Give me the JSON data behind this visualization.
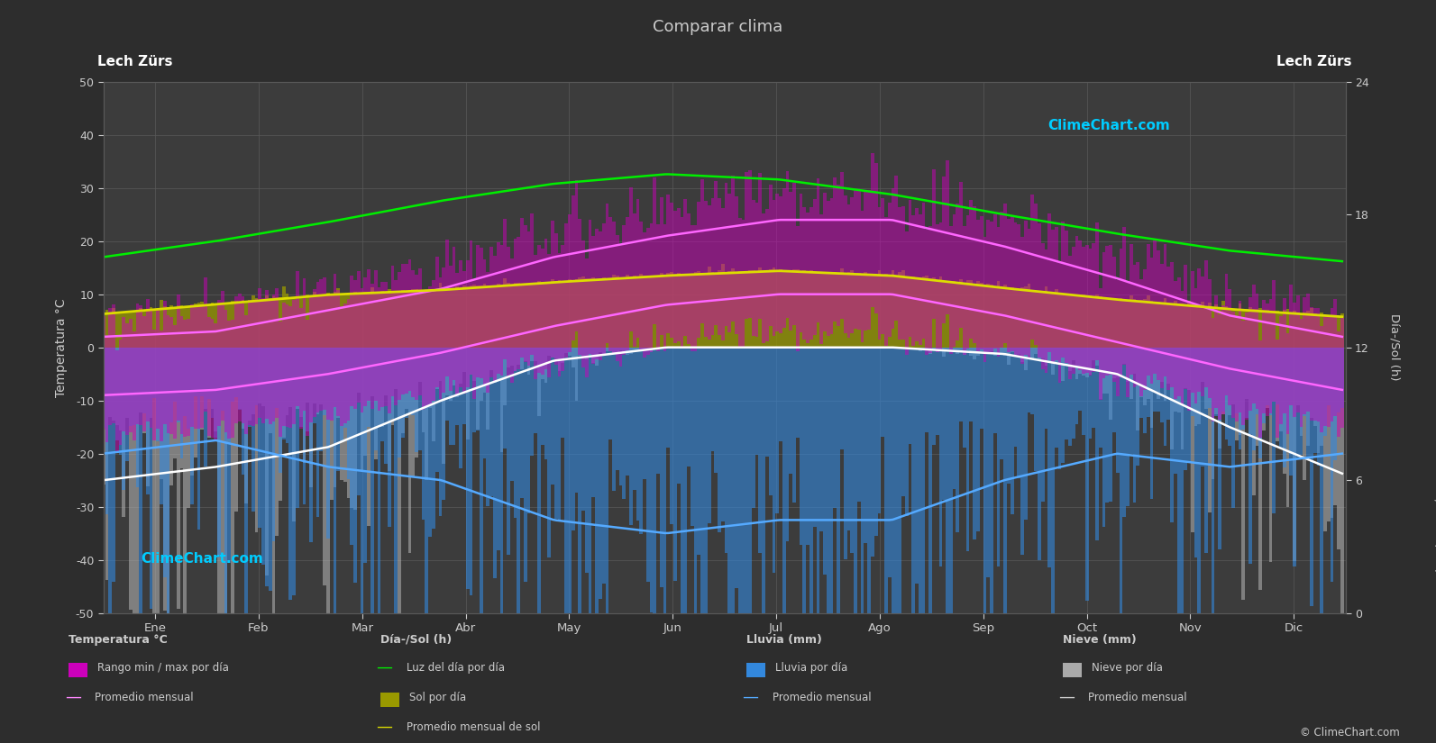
{
  "title": "Comparar clima",
  "left_label_top": "Lech Zürs",
  "right_label_top": "Lech Zürs",
  "xlabel_months": [
    "Ene",
    "Feb",
    "Mar",
    "Abr",
    "May",
    "Jun",
    "Jul",
    "Ago",
    "Sep",
    "Oct",
    "Nov",
    "Dic"
  ],
  "ylabel_left": "Temperatura °C",
  "ylabel_right_top": "Día-/Sol (h)",
  "ylabel_right_bottom": "Lluvia / Nieve (mm)",
  "ylim_left": [
    -50,
    50
  ],
  "background_color": "#2d2d2d",
  "plot_bg_color": "#3c3c3c",
  "grid_color": "#595959",
  "text_color": "#cccccc",
  "temp_avg_max_monthly": [
    2,
    3,
    7,
    11,
    17,
    21,
    24,
    24,
    19,
    13,
    6,
    2
  ],
  "temp_avg_min_monthly": [
    -9,
    -8,
    -5,
    -1,
    4,
    8,
    10,
    10,
    6,
    1,
    -4,
    -8
  ],
  "temp_abs_max_monthly": [
    5,
    7,
    11,
    16,
    22,
    26,
    29,
    29,
    24,
    18,
    9,
    6
  ],
  "temp_abs_min_monthly": [
    -16,
    -16,
    -13,
    -8,
    -3,
    1,
    3,
    3,
    -1,
    -6,
    -12,
    -15
  ],
  "daylight_monthly": [
    8.5,
    10.0,
    11.8,
    13.8,
    15.4,
    16.3,
    15.8,
    14.4,
    12.5,
    10.7,
    9.1,
    8.1
  ],
  "sunshine_monthly": [
    3.5,
    4.5,
    5.5,
    6.0,
    6.8,
    7.5,
    8.0,
    7.5,
    6.2,
    5.0,
    4.0,
    3.2
  ],
  "rain_monthly_mm": [
    80,
    70,
    90,
    100,
    130,
    140,
    130,
    130,
    100,
    80,
    90,
    80
  ],
  "snow_monthly_mm": [
    200,
    180,
    150,
    80,
    20,
    0,
    0,
    0,
    10,
    40,
    120,
    190
  ],
  "daylight_to_temp_scale": 2.0,
  "rain_to_temp_scale": 0.25,
  "snow_to_temp_scale": 0.125,
  "sunshine_to_temp_scale": 1.8
}
